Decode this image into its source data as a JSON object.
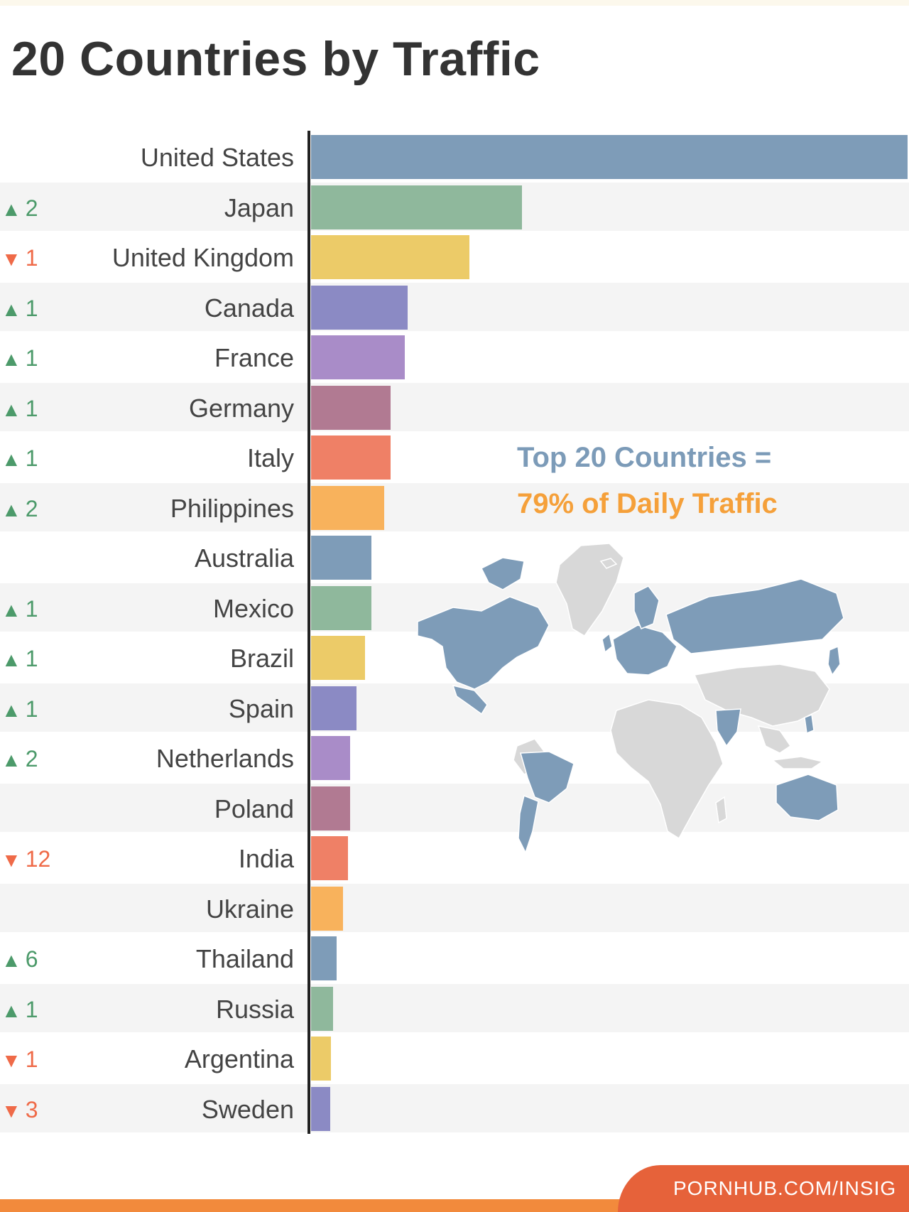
{
  "title": "20 Countries by Traffic",
  "annotation": {
    "line1": "Top 20 Countries =",
    "line2": "79% of Daily Traffic"
  },
  "footer": {
    "source": "PORNHUB.COM/INSIG"
  },
  "colors": {
    "blue": "#7e9cb8",
    "green": "#8fb89c",
    "yellow": "#eccb68",
    "indigo": "#8b8ac4",
    "lavender": "#a98cc8",
    "mauve": "#b17a92",
    "coral": "#ef8066",
    "orange": "#f8b25c",
    "up": "#4c9a6a",
    "down": "#ef6a48",
    "map_highlight": "#7e9cb8",
    "map_base": "#d8d8d8"
  },
  "chart_data": {
    "type": "bar",
    "orientation": "horizontal",
    "value_axis_labels": false,
    "categories": [
      "United States",
      "Japan",
      "United Kingdom",
      "Canada",
      "France",
      "Germany",
      "Italy",
      "Philippines",
      "Australia",
      "Mexico",
      "Brazil",
      "Spain",
      "Netherlands",
      "Poland",
      "India",
      "Ukraine",
      "Thailand",
      "Russia",
      "Argentina",
      "Sweden"
    ],
    "values": [
      100,
      35.3,
      26.6,
      16.2,
      15.7,
      13.3,
      13.3,
      12.3,
      10.1,
      10.1,
      9.1,
      7.6,
      6.6,
      6.6,
      6.2,
      5.3,
      4.3,
      3.7,
      3.3,
      3.2
    ],
    "colors": [
      "blue",
      "green",
      "yellow",
      "indigo",
      "lavender",
      "mauve",
      "coral",
      "orange",
      "blue",
      "green",
      "yellow",
      "indigo",
      "lavender",
      "mauve",
      "coral",
      "orange",
      "blue",
      "green",
      "yellow",
      "indigo"
    ],
    "rank_changes": [
      {
        "dir": "",
        "value": ""
      },
      {
        "dir": "up",
        "value": "2"
      },
      {
        "dir": "down",
        "value": "1"
      },
      {
        "dir": "up",
        "value": "1"
      },
      {
        "dir": "up",
        "value": "1"
      },
      {
        "dir": "up",
        "value": "1"
      },
      {
        "dir": "up",
        "value": "1"
      },
      {
        "dir": "up",
        "value": "2"
      },
      {
        "dir": "",
        "value": ""
      },
      {
        "dir": "up",
        "value": "1"
      },
      {
        "dir": "up",
        "value": "1"
      },
      {
        "dir": "up",
        "value": "1"
      },
      {
        "dir": "up",
        "value": "2"
      },
      {
        "dir": "",
        "value": ""
      },
      {
        "dir": "down",
        "value": "12"
      },
      {
        "dir": "",
        "value": ""
      },
      {
        "dir": "up",
        "value": "6"
      },
      {
        "dir": "up",
        "value": "1"
      },
      {
        "dir": "down",
        "value": "1"
      },
      {
        "dir": "down",
        "value": "3"
      }
    ]
  }
}
